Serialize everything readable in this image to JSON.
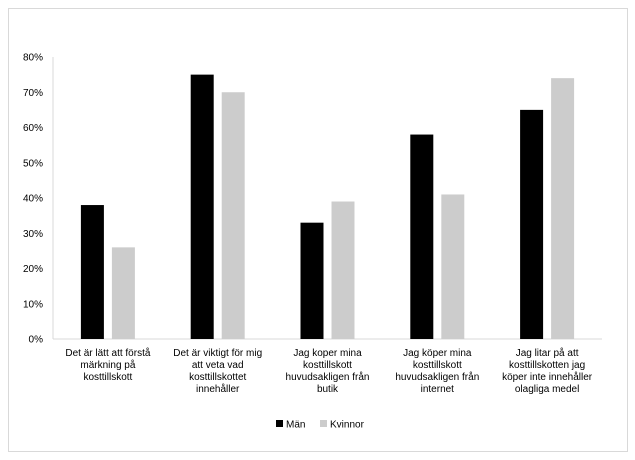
{
  "chart_data": {
    "type": "bar",
    "categories": [
      [
        "Det är lätt att förstå",
        "märkning på",
        "kosttillskott"
      ],
      [
        "Det är viktigt för mig",
        "att veta vad",
        "kosttillskottet",
        "innehåller"
      ],
      [
        "Jag koper mina",
        "kosttillskott",
        "huvudsakligen från",
        "butik"
      ],
      [
        "Jag köper mina",
        "kosttillskott",
        "huvudsakligen från",
        "internet"
      ],
      [
        "Jag litar på att",
        "kosttillskotten jag",
        "köper inte innehåller",
        "olagliga medel"
      ]
    ],
    "series": [
      {
        "name": "Män",
        "color": "#000000",
        "values": [
          38,
          75,
          33,
          58,
          65
        ]
      },
      {
        "name": "Kvinnor",
        "color": "#cccccc",
        "values": [
          26,
          70,
          39,
          41,
          74
        ]
      }
    ],
    "ylim": [
      0,
      80
    ],
    "yticks": [
      "0%",
      "10%",
      "20%",
      "30%",
      "40%",
      "50%",
      "60%",
      "70%",
      "80%"
    ],
    "grid": false,
    "legend": "bottom"
  }
}
